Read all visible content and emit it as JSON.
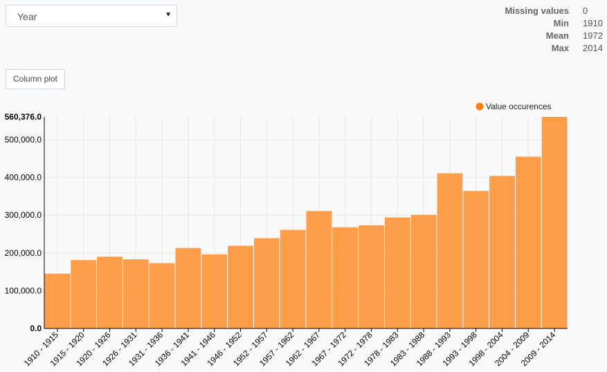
{
  "column_select": {
    "value": "Year"
  },
  "stats": [
    {
      "label": "Missing values",
      "value": "0"
    },
    {
      "label": "Min",
      "value": "1910"
    },
    {
      "label": "Mean",
      "value": "1972"
    },
    {
      "label": "Max",
      "value": "2014"
    }
  ],
  "plot_type_button": {
    "label": "Column plot"
  },
  "chart_data": {
    "type": "bar",
    "categories": [
      "1910 - 1915",
      "1915 - 1920",
      "1920 - 1926",
      "1926 - 1931",
      "1931 - 1936",
      "1936 - 1941",
      "1941 - 1946",
      "1946 - 1952",
      "1952 - 1957",
      "1957 - 1962",
      "1962 - 1967",
      "1967 - 1972",
      "1972 - 1978",
      "1978 - 1983",
      "1983 - 1988",
      "1988 - 1993",
      "1993 - 1998",
      "1998 - 2004",
      "2004 - 2009",
      "2009 - 2014"
    ],
    "series": [
      {
        "name": "Value occurences",
        "values": [
          145000,
          181000,
          190000,
          183000,
          173000,
          213000,
          196000,
          219000,
          239000,
          261000,
          311000,
          268000,
          273000,
          294000,
          301000,
          411000,
          364000,
          404000,
          455000,
          560376
        ]
      }
    ],
    "ylim": [
      0,
      560376
    ],
    "yticks": [
      "0.0",
      "100,000.0",
      "200,000.0",
      "300,000.0",
      "400,000.0",
      "500,000.0"
    ],
    "ymax_label": "560,376.0",
    "grid": true,
    "legend_position": "top-right",
    "colors": {
      "bar": "#ff9940",
      "legend_dot": "#ff7f0e"
    }
  }
}
